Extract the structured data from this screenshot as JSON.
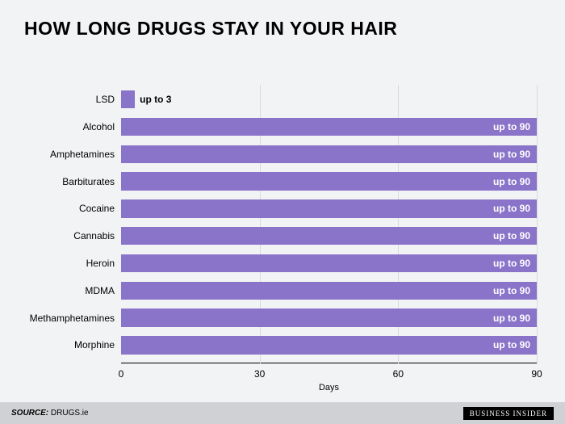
{
  "title": "HOW LONG DRUGS STAY IN YOUR HAIR",
  "title_fontsize": 23,
  "xlabel": "Days",
  "label_fontsize": 11,
  "category_fontsize": 12,
  "barlabel_fontsize": 12,
  "tick_fontsize": 12,
  "xmin": 0,
  "xmax": 90,
  "xticks": [
    0,
    30,
    60,
    90
  ],
  "row_height_pct": 6.5,
  "row_gap_pct": 3.3,
  "top_gap_pct": 2.0,
  "categories": [
    {
      "name": "LSD",
      "value": 3,
      "label": "up to 3",
      "label_inside": false
    },
    {
      "name": "Alcohol",
      "value": 90,
      "label": "up to 90",
      "label_inside": true
    },
    {
      "name": "Amphetamines",
      "value": 90,
      "label": "up to 90",
      "label_inside": true
    },
    {
      "name": "Barbiturates",
      "value": 90,
      "label": "up to 90",
      "label_inside": true
    },
    {
      "name": "Cocaine",
      "value": 90,
      "label": "up to 90",
      "label_inside": true
    },
    {
      "name": "Cannabis",
      "value": 90,
      "label": "up to 90",
      "label_inside": true
    },
    {
      "name": "Heroin",
      "value": 90,
      "label": "up to 90",
      "label_inside": true
    },
    {
      "name": "MDMA",
      "value": 90,
      "label": "up to 90",
      "label_inside": true
    },
    {
      "name": "Methamphetamines",
      "value": 90,
      "label": "up to 90",
      "label_inside": true
    },
    {
      "name": "Morphine",
      "value": 90,
      "label": "up to 90",
      "label_inside": true
    }
  ],
  "colors": {
    "bar": "#8a74c9",
    "background": "#f2f3f5",
    "grid": "#d9dadd",
    "footer_bg": "#cfd1d4"
  },
  "source_prefix": "SOURCE:",
  "source_name": "DRUGS.ie",
  "credit": "BUSINESS INSIDER",
  "source_fontsize": 10
}
